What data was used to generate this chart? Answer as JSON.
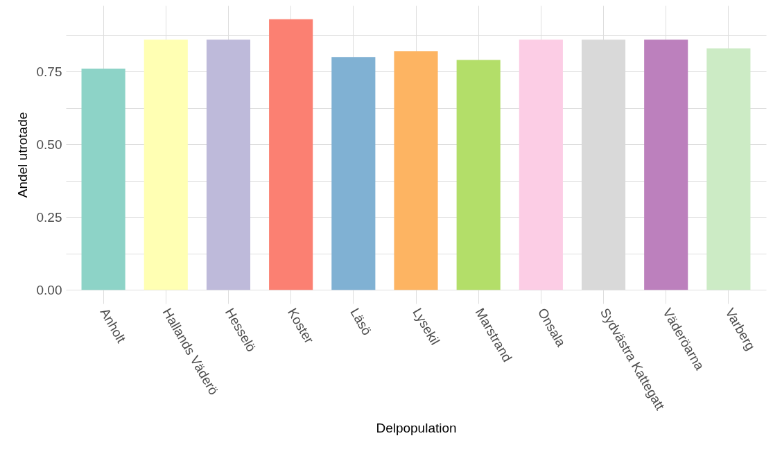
{
  "chart_data": {
    "type": "bar",
    "xlabel": "Delpopulation",
    "ylabel": "Andel utrotade",
    "categories": [
      "Anholt",
      "Hallands Väderö",
      "Hesselö",
      "Koster",
      "Läsö",
      "Lysekil",
      "Marstrand",
      "Onsala",
      "Sydvästra Kattegatt",
      "Väderöarna",
      "Varberg"
    ],
    "values": [
      0.76,
      0.86,
      0.86,
      0.93,
      0.8,
      0.82,
      0.79,
      0.86,
      0.86,
      0.86,
      0.83
    ],
    "colors": [
      "#8dd3c7",
      "#ffffb3",
      "#bebada",
      "#fb8072",
      "#80b1d3",
      "#fdb462",
      "#b3de69",
      "#fccde5",
      "#d9d9d9",
      "#bc80bd",
      "#ccebc5"
    ],
    "ylim": [
      -0.047,
      0.977
    ],
    "yticks": [
      {
        "value": 0,
        "label": "0.00"
      },
      {
        "value": 0.125,
        "label": null
      },
      {
        "value": 0.25,
        "label": "0.25"
      },
      {
        "value": 0.375,
        "label": null
      },
      {
        "value": 0.5,
        "label": "0.50"
      },
      {
        "value": 0.625,
        "label": null
      },
      {
        "value": 0.75,
        "label": "0.75"
      },
      {
        "value": 0.875,
        "label": null
      }
    ],
    "grid": true
  }
}
